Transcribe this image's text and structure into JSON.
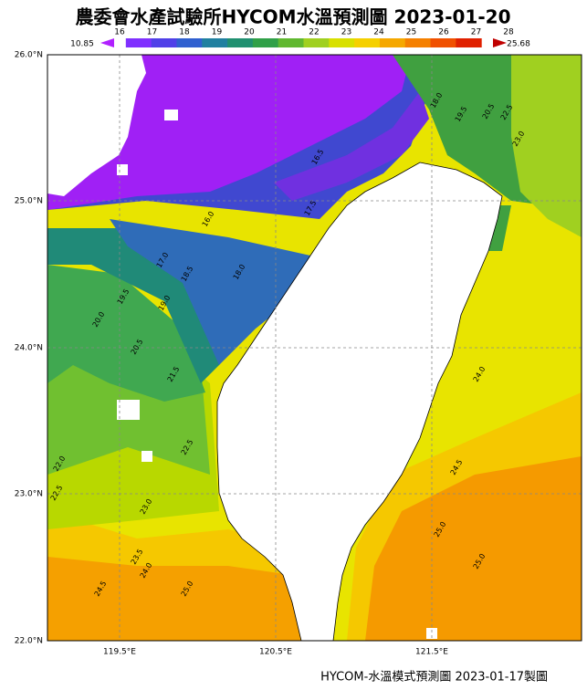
{
  "header": {
    "title": "農委會水產試驗所HYCOM水溫預測圖 2023-01-20"
  },
  "colorbar": {
    "min_label": "10.85",
    "max_label": "25.68",
    "ticks": [
      "16",
      "17",
      "18",
      "19",
      "20",
      "21",
      "22",
      "23",
      "24",
      "25",
      "26",
      "27",
      "28"
    ]
  },
  "map": {
    "lat_labels": [
      "26.0°N",
      "25.0°N",
      "24.0°N",
      "23.0°N",
      "22.0°N"
    ],
    "lon_labels": [
      "119.5°E",
      "120.5°E",
      "121.5°E"
    ],
    "contour_labels": [
      "16.5",
      "17.5",
      "16.0",
      "17.0",
      "18.5",
      "18.0",
      "19.5",
      "19.0",
      "20.0",
      "20.5",
      "21.5",
      "22.0",
      "22.5",
      "23.0",
      "22.5",
      "23.5",
      "24.0",
      "24.5",
      "25.0",
      "24.0",
      "24.5",
      "25.0",
      "25.0",
      "23.0",
      "22.5",
      "20.5",
      "19.5",
      "18.0"
    ]
  },
  "footer": "HYCOM-水溫模式預測圖 2023-01-17製圖"
}
